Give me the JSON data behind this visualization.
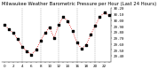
{
  "title": "Milwaukee Weather Barometric Pressure per Hour (Last 24 Hours)",
  "hours": [
    0,
    1,
    2,
    3,
    4,
    5,
    6,
    7,
    8,
    9,
    10,
    11,
    12,
    13,
    14,
    15,
    16,
    17,
    18,
    19,
    20,
    21,
    22,
    23
  ],
  "hour_labels": [
    "0",
    "",
    "2",
    "",
    "4",
    "",
    "6",
    "",
    "8",
    "",
    "10",
    "",
    "12",
    "",
    "14",
    "",
    "16",
    "",
    "18",
    "",
    "20",
    "",
    "22",
    ""
  ],
  "pressure": [
    29.92,
    29.85,
    29.78,
    29.68,
    29.55,
    29.48,
    29.42,
    29.5,
    29.65,
    29.78,
    29.88,
    29.7,
    29.92,
    30.05,
    29.98,
    29.82,
    29.62,
    29.52,
    29.58,
    29.75,
    29.9,
    30.05,
    30.12,
    30.08
  ],
  "ylim_min": 29.3,
  "ylim_max": 30.2,
  "ytick_values": [
    29.4,
    29.5,
    29.6,
    29.7,
    29.8,
    29.9,
    30.0,
    30.1,
    30.2
  ],
  "ytick_labels": [
    "29.40",
    "29.50",
    "29.60",
    "29.70",
    "29.80",
    "29.90",
    "30.00",
    "30.10",
    "30.20"
  ],
  "line_color": "#dd0000",
  "marker_color": "#000000",
  "bg_color": "#ffffff",
  "grid_color": "#999999",
  "title_color": "#000000",
  "title_fontsize": 3.8,
  "tick_fontsize": 3.0,
  "line_width": 0.6,
  "marker_size": 1.8,
  "vgrid_positions": [
    4,
    8,
    12,
    16,
    20
  ]
}
